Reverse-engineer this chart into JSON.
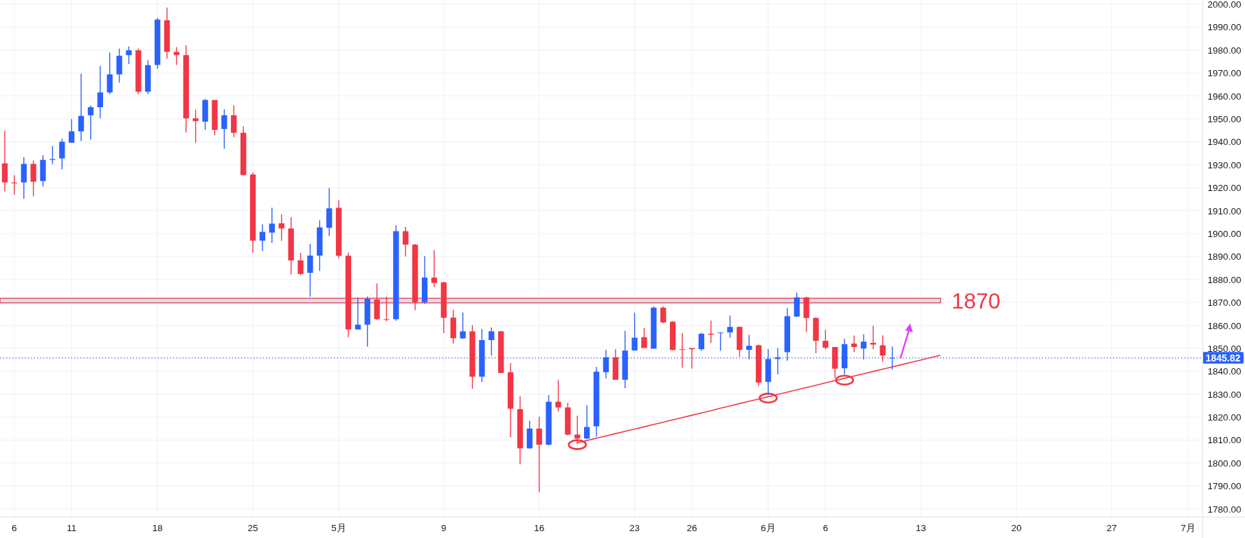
{
  "chart_data": {
    "type": "candlestick",
    "categories": [
      null,
      "6",
      null,
      null,
      null,
      null,
      null,
      "11",
      null,
      null,
      null,
      null,
      null,
      null,
      null,
      null,
      "18",
      null,
      null,
      null,
      null,
      null,
      null,
      null,
      null,
      null,
      "25",
      null,
      null,
      null,
      null,
      null,
      null,
      null,
      null,
      "5月",
      null,
      null,
      null,
      null,
      null,
      null,
      null,
      null,
      null,
      null,
      "9",
      null,
      null,
      null,
      null,
      null,
      null,
      null,
      null,
      null,
      "16",
      null,
      null,
      null,
      null,
      null,
      null,
      null,
      null,
      null,
      "23",
      null,
      null,
      null,
      null,
      null,
      "26",
      null,
      null,
      null,
      null,
      null,
      null,
      null,
      "6月",
      null,
      null,
      null,
      null,
      null,
      "6",
      null,
      null,
      null,
      null,
      null,
      null,
      null,
      null,
      null,
      "13",
      null,
      null,
      null,
      null,
      null,
      null,
      null,
      null,
      null,
      "20",
      null,
      null,
      null,
      null,
      null,
      null,
      null,
      null,
      null,
      "27",
      null,
      null,
      null,
      null,
      null,
      null,
      null,
      "7月",
      null
    ],
    "ohlc": [
      [
        1930.6,
        1944.8,
        1918.3,
        1922.3
      ],
      [
        1922.3,
        1925.4,
        1916.9,
        1921.9
      ],
      [
        1922.3,
        1933.3,
        1915.2,
        1930.4
      ],
      [
        1930.4,
        1931.9,
        1916.2,
        1922.6
      ],
      [
        1922.9,
        1934.2,
        1920.6,
        1932.1
      ],
      [
        1932.1,
        1938.2,
        1930.4,
        1932.5
      ],
      [
        1932.8,
        1941.3,
        1928.0,
        1940.0
      ],
      [
        1939.6,
        1949.9,
        1939.6,
        1944.5
      ],
      [
        1944.5,
        1969.7,
        1940.3,
        1951.3
      ],
      [
        1951.6,
        1955.8,
        1941.0,
        1955.1
      ],
      [
        1955.1,
        1973.1,
        1950.2,
        1961.5
      ],
      [
        1961.5,
        1978.9,
        1960.8,
        1969.4
      ],
      [
        1969.4,
        1980.6,
        1965.9,
        1977.5
      ],
      [
        1977.8,
        1981.6,
        1973.9,
        1979.9
      ],
      [
        1979.9,
        1980.6,
        1960.8,
        1961.8
      ],
      [
        1961.8,
        1975.6,
        1960.8,
        1973.4
      ],
      [
        1973.5,
        1994.0,
        1971.8,
        1993.3
      ],
      [
        1993.0,
        1998.5,
        1976.3,
        1979.2
      ],
      [
        1979.2,
        1981.3,
        1973.5,
        1977.8
      ],
      [
        1977.8,
        1982.0,
        1944.1,
        1950.2
      ],
      [
        1950.2,
        1954.0,
        1939.6,
        1949.0
      ],
      [
        1948.8,
        1958.7,
        1945.2,
        1958.2
      ],
      [
        1958.2,
        1958.2,
        1942.8,
        1945.2
      ],
      [
        1945.6,
        1954.2,
        1937.0,
        1951.6
      ],
      [
        1951.6,
        1955.9,
        1942.0,
        1943.9
      ],
      [
        1943.9,
        1946.7,
        1925.3,
        1925.5
      ],
      [
        1925.7,
        1926.6,
        1891.7,
        1896.9
      ],
      [
        1896.9,
        1904.0,
        1892.4,
        1900.7
      ],
      [
        1900.4,
        1911.3,
        1895.9,
        1904.3
      ],
      [
        1904.5,
        1908.4,
        1896.8,
        1902.2
      ],
      [
        1902.2,
        1907.2,
        1882.1,
        1888.3
      ],
      [
        1888.3,
        1891.6,
        1881.9,
        1882.4
      ],
      [
        1882.9,
        1895.5,
        1872.5,
        1890.4
      ],
      [
        1890.4,
        1905.8,
        1883.7,
        1902.7
      ],
      [
        1902.5,
        1919.9,
        1898.9,
        1911.0
      ],
      [
        1911.2,
        1914.6,
        1889.3,
        1890.3
      ],
      [
        1890.3,
        1891.7,
        1854.8,
        1858.2
      ],
      [
        1858.2,
        1872.1,
        1858.2,
        1860.3
      ],
      [
        1860.3,
        1872.6,
        1850.7,
        1871.5
      ],
      [
        1871.2,
        1878.3,
        1862.3,
        1862.7
      ],
      [
        1862.7,
        1872.5,
        1861.8,
        1862.5
      ],
      [
        1862.7,
        1903.6,
        1862.0,
        1901.0
      ],
      [
        1901.0,
        1903.0,
        1890.0,
        1895.2
      ],
      [
        1895.2,
        1895.5,
        1866.6,
        1870.1
      ],
      [
        1870.1,
        1890.2,
        1869.3,
        1880.8
      ],
      [
        1880.8,
        1892.8,
        1876.6,
        1878.5
      ],
      [
        1878.7,
        1879.0,
        1856.6,
        1863.3
      ],
      [
        1863.4,
        1866.8,
        1852.1,
        1854.4
      ],
      [
        1854.3,
        1865.6,
        1854.1,
        1857.4
      ],
      [
        1857.4,
        1860.1,
        1832.3,
        1837.6
      ],
      [
        1837.6,
        1858.4,
        1835.3,
        1853.6
      ],
      [
        1853.6,
        1859.1,
        1846.8,
        1857.4
      ],
      [
        1857.4,
        1857.6,
        1839.1,
        1839.3
      ],
      [
        1839.6,
        1843.6,
        1811.2,
        1823.7
      ],
      [
        1823.5,
        1829.1,
        1799.4,
        1806.4
      ],
      [
        1806.4,
        1818.4,
        1806.2,
        1815.0
      ],
      [
        1815.0,
        1820.2,
        1787.2,
        1808.0
      ],
      [
        1808.0,
        1829.6,
        1807.7,
        1826.7
      ],
      [
        1826.7,
        1836.3,
        1822.4,
        1824.2
      ],
      [
        1824.2,
        1826.2,
        1812.0,
        1812.4
      ],
      [
        1812.4,
        1820.6,
        1808.2,
        1810.7
      ],
      [
        1810.7,
        1825.2,
        1810.4,
        1815.7
      ],
      [
        1816.0,
        1841.9,
        1811.4,
        1839.8
      ],
      [
        1839.6,
        1849.3,
        1836.9,
        1846.1
      ],
      [
        1846.1,
        1849.6,
        1836.3,
        1836.3
      ],
      [
        1836.3,
        1857.6,
        1832.6,
        1849.0
      ],
      [
        1849.1,
        1865.5,
        1848.9,
        1854.6
      ],
      [
        1854.8,
        1858.9,
        1850.1,
        1850.1
      ],
      [
        1849.8,
        1868.2,
        1849.8,
        1867.7
      ],
      [
        1867.7,
        1868.2,
        1860.9,
        1861.3
      ],
      [
        1861.6,
        1861.9,
        1849.1,
        1849.3
      ],
      [
        1849.6,
        1856.6,
        1841.6,
        1849.3
      ],
      [
        1850.1,
        1850.1,
        1841.1,
        1849.6
      ],
      [
        1849.6,
        1856.8,
        1848.9,
        1856.3
      ],
      [
        1856.3,
        1862.1,
        1852.3,
        1855.9
      ],
      [
        1856.6,
        1856.9,
        1848.9,
        1856.9
      ],
      [
        1856.9,
        1864.3,
        1854.6,
        1859.3
      ],
      [
        1859.3,
        1859.6,
        1846.3,
        1849.3
      ],
      [
        1849.3,
        1855.8,
        1845.1,
        1851.1
      ],
      [
        1851.3,
        1851.6,
        1833.6,
        1835.1
      ],
      [
        1835.4,
        1849.6,
        1829.6,
        1845.3
      ],
      [
        1845.3,
        1850.1,
        1838.6,
        1846.1
      ],
      [
        1848.3,
        1867.5,
        1844.6,
        1864.0
      ],
      [
        1863.8,
        1874.2,
        1863.7,
        1872.2
      ],
      [
        1872.2,
        1872.5,
        1857.1,
        1863.2
      ],
      [
        1863.2,
        1863.5,
        1847.9,
        1853.3
      ],
      [
        1853.3,
        1858.1,
        1849.6,
        1850.3
      ],
      [
        1850.6,
        1850.6,
        1837.1,
        1841.1
      ],
      [
        1841.3,
        1854.1,
        1838.6,
        1851.8
      ],
      [
        1852.1,
        1855.6,
        1848.3,
        1850.6
      ],
      [
        1849.9,
        1856.1,
        1845.1,
        1852.9
      ],
      [
        1852.4,
        1859.8,
        1849.6,
        1851.6
      ],
      [
        1851.3,
        1855.6,
        1844.1,
        1846.8
      ],
      [
        1845.6,
        1850.8,
        1840.6,
        1845.82
      ],
      null,
      null,
      null,
      null,
      null,
      null,
      null,
      null,
      null,
      null,
      null,
      null,
      null,
      null,
      null,
      null,
      null,
      null,
      null,
      null,
      null,
      null,
      null,
      null,
      null,
      null,
      null,
      null,
      null,
      null,
      null,
      null
    ],
    "colors": [
      "#f23645",
      "#f23645",
      "#2962ff",
      "#f23645",
      "#2962ff",
      "#2962ff",
      "#2962ff",
      "#2962ff",
      "#2962ff",
      "#2962ff",
      "#2962ff",
      "#2962ff",
      "#2962ff",
      "#2962ff",
      "#f23645",
      "#2962ff",
      "#2962ff",
      "#f23645",
      "#f23645",
      "#f23645",
      "#f23645",
      "#2962ff",
      "#f23645",
      "#2962ff",
      "#f23645",
      "#f23645",
      "#f23645",
      "#2962ff",
      "#2962ff",
      "#f23645",
      "#f23645",
      "#f23645",
      "#2962ff",
      "#2962ff",
      "#2962ff",
      "#f23645",
      "#f23645",
      "#2962ff",
      "#2962ff",
      "#f23645",
      "#f23645",
      "#2962ff",
      "#f23645",
      "#f23645",
      "#2962ff",
      "#f23645",
      "#f23645",
      "#f23645",
      "#2962ff",
      "#f23645",
      "#2962ff",
      "#2962ff",
      "#f23645",
      "#f23645",
      "#f23645",
      "#2962ff",
      "#f23645",
      "#2962ff",
      "#f23645",
      "#f23645",
      "#f23645",
      "#2962ff",
      "#2962ff",
      "#2962ff",
      "#f23645",
      "#2962ff",
      "#2962ff",
      "#f23645",
      "#2962ff",
      "#f23645",
      "#f23645",
      "#f23645",
      "#f23645",
      "#2962ff",
      "#f23645",
      "#2962ff",
      "#2962ff",
      "#f23645",
      "#2962ff",
      "#f23645",
      "#2962ff",
      "#2962ff",
      "#2962ff",
      "#2962ff",
      "#f23645",
      "#f23645",
      "#f23645",
      "#f23645",
      "#2962ff",
      "#f23645",
      "#2962ff",
      "#f23645",
      "#f23645",
      "#2962ff",
      null,
      null,
      null,
      null,
      null,
      null,
      null,
      null,
      null,
      null,
      null,
      null,
      null,
      null,
      null,
      null,
      null,
      null,
      null,
      null,
      null,
      null,
      null,
      null,
      null,
      null,
      null,
      null,
      null,
      null,
      null,
      null
    ],
    "ylim": [
      1776.6,
      2001.8
    ],
    "yticks": [
      {
        "value": 1780,
        "label": "1780.00"
      },
      {
        "value": 1790,
        "label": "1790.00"
      },
      {
        "value": 1800,
        "label": "1800.00"
      },
      {
        "value": 1810,
        "label": "1810.00"
      },
      {
        "value": 1820,
        "label": "1820.00"
      },
      {
        "value": 1830,
        "label": "1830.00"
      },
      {
        "value": 1840,
        "label": "1840.00"
      },
      {
        "value": 1850,
        "label": "1850.00"
      },
      {
        "value": 1860,
        "label": "1860.00"
      },
      {
        "value": 1870,
        "label": "1870.00"
      },
      {
        "value": 1880,
        "label": "1880.00"
      },
      {
        "value": 1890,
        "label": "1890.00"
      },
      {
        "value": 1900,
        "label": "1900.00"
      },
      {
        "value": 1910,
        "label": "1910.00"
      },
      {
        "value": 1920,
        "label": "1920.00"
      },
      {
        "value": 1930,
        "label": "1930.00"
      },
      {
        "value": 1940,
        "label": "1940.00"
      },
      {
        "value": 1950,
        "label": "1950.00"
      },
      {
        "value": 1960,
        "label": "1960.00"
      },
      {
        "value": 1970,
        "label": "1970.00"
      },
      {
        "value": 1980,
        "label": "1980.00"
      },
      {
        "value": 1990,
        "label": "1990.00"
      },
      {
        "value": 2000,
        "label": "2000.00"
      }
    ],
    "grid": true,
    "series": [
      {
        "type": "line",
        "color": "#f23645",
        "values": [
          null,
          null,
          null,
          null,
          null,
          null,
          null,
          null,
          null,
          null,
          null,
          null,
          null,
          null,
          null,
          null,
          null,
          null,
          null,
          null,
          null,
          null,
          null,
          null,
          null,
          null,
          null,
          null,
          null,
          null,
          null,
          null,
          null,
          null,
          null,
          null,
          null,
          null,
          null,
          null,
          null,
          null,
          null,
          null,
          null,
          null,
          null,
          null,
          null,
          null,
          null,
          null,
          null,
          null,
          null,
          null,
          null,
          null,
          null,
          null,
          1808.8,
          1809.8,
          1810.8,
          1811.8,
          1812.8,
          1813.8,
          1814.8,
          1815.8,
          1816.8,
          1817.8,
          1818.8,
          1819.8,
          1820.8,
          1821.8,
          1822.8,
          1823.9,
          1824.9,
          1825.9,
          1826.9,
          1827.9,
          1828.9,
          1829.9,
          1830.9,
          1831.9,
          1832.9,
          1833.9,
          1834.9,
          1835.9,
          1836.9,
          1837.9,
          1838.9,
          1839.9,
          1840.9,
          1841.9,
          1842.9,
          1843.9,
          1844.9,
          1845.9,
          1846.9,
          null,
          null,
          null,
          null,
          null,
          null,
          null,
          null,
          null,
          null,
          null,
          null,
          null,
          null,
          null,
          null,
          null,
          null,
          null,
          null,
          null,
          null,
          null,
          null,
          null,
          null,
          null
        ]
      },
      {
        "type": "scatter",
        "color": "#f23645",
        "marker": "circle",
        "values": [
          null,
          null,
          null,
          null,
          null,
          null,
          null,
          null,
          null,
          null,
          null,
          null,
          null,
          null,
          null,
          null,
          null,
          null,
          null,
          null,
          null,
          null,
          null,
          null,
          null,
          null,
          null,
          null,
          null,
          null,
          null,
          null,
          null,
          null,
          null,
          null,
          null,
          null,
          null,
          null,
          null,
          null,
          null,
          null,
          null,
          null,
          null,
          null,
          null,
          null,
          null,
          null,
          null,
          null,
          null,
          null,
          null,
          null,
          null,
          null,
          1808.0,
          null,
          null,
          null,
          null,
          null,
          null,
          null,
          null,
          null,
          null,
          null,
          null,
          null,
          null,
          null,
          null,
          null,
          null,
          null,
          1828.3,
          null,
          null,
          null,
          null,
          null,
          null,
          null,
          1836.1,
          null,
          null,
          null,
          null,
          null,
          null,
          null,
          null,
          null,
          null,
          null,
          null,
          null,
          null,
          null,
          null,
          null,
          null,
          null,
          null,
          null,
          null,
          null,
          null,
          null,
          null,
          null,
          null,
          null,
          null,
          null,
          null,
          null,
          null,
          null,
          null,
          null
        ]
      }
    ],
    "ref_lines": [
      {
        "axis": "y",
        "value": 1845.82,
        "label": "1845.82",
        "color": "#2962ff",
        "line_style": "dotted"
      }
    ],
    "bands": [
      {
        "axis": "y",
        "from": 1869.8,
        "to": 1871.8,
        "label": "1870",
        "color": "#f23645"
      }
    ]
  }
}
